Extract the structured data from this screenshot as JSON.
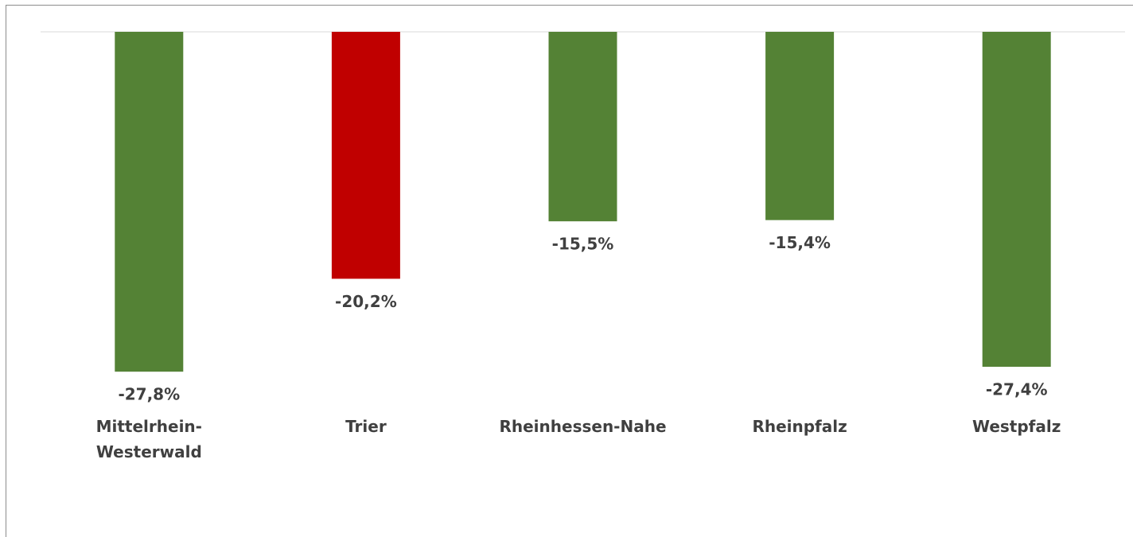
{
  "chart_data": {
    "type": "bar",
    "categories": [
      "Mittelrhein-Westerwald",
      "Trier",
      "Rheinhessen-Nahe",
      "Rheinpfalz",
      "Westpfalz"
    ],
    "values": [
      -27.8,
      -20.2,
      -15.5,
      -15.4,
      -27.4
    ],
    "value_labels": [
      "-27,8%",
      "-20,2%",
      "-15,5%",
      "-15,4%",
      "-27,4%"
    ],
    "colors": [
      "#548235",
      "#c00000",
      "#548235",
      "#548235",
      "#548235"
    ],
    "ylim": [
      -30,
      0
    ]
  }
}
